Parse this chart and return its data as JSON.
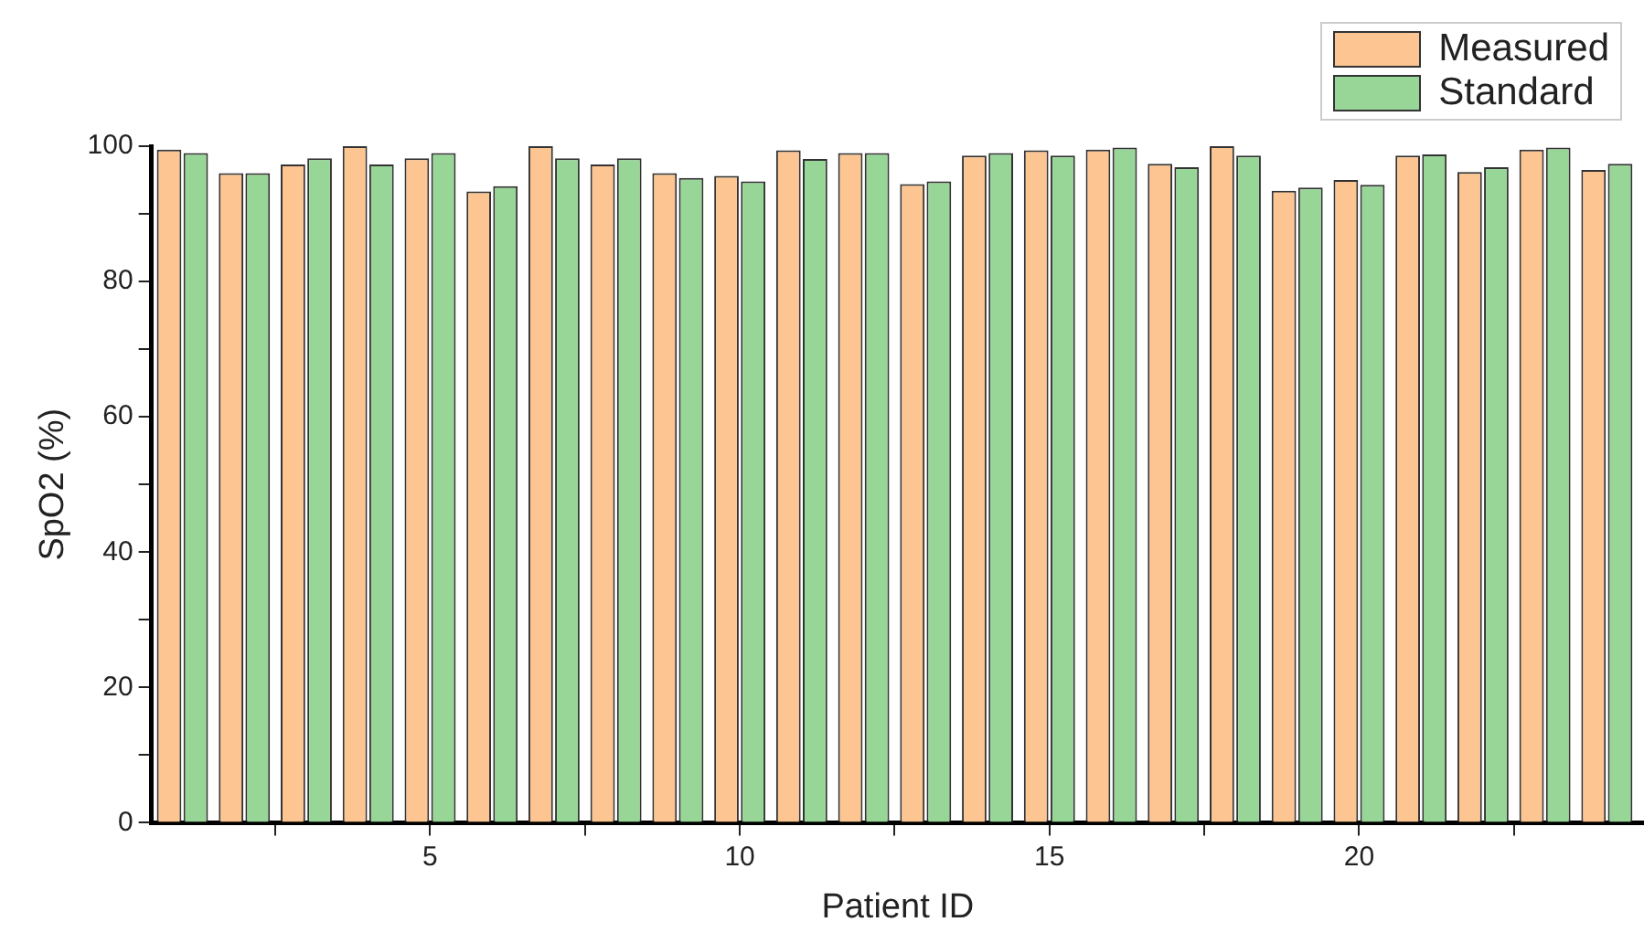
{
  "chart_data": {
    "type": "bar",
    "xlabel": "Patient ID",
    "ylabel": "SpO2 (%)",
    "x": [
      1,
      2,
      3,
      4,
      5,
      6,
      7,
      8,
      9,
      10,
      11,
      12,
      13,
      14,
      15,
      16,
      17,
      18,
      19,
      20,
      21,
      22,
      23,
      24
    ],
    "series": [
      {
        "name": "Measured",
        "color": "#fdc591",
        "values": [
          99.5,
          96.0,
          97.3,
          100,
          98.2,
          93.3,
          100,
          97.3,
          96.0,
          95.6,
          99.4,
          99.0,
          94.4,
          98.6,
          99.4,
          99.5,
          97.4,
          100,
          93.4,
          95.0,
          98.6,
          96.2,
          99.5,
          96.5
        ]
      },
      {
        "name": "Standard",
        "color": "#98d698",
        "values": [
          99.0,
          96.0,
          98.2,
          97.3,
          99.0,
          94.1,
          98.2,
          98.2,
          95.3,
          94.8,
          98.1,
          99.0,
          94.8,
          99.0,
          98.6,
          99.8,
          96.9,
          98.6,
          93.9,
          94.3,
          98.8,
          96.9,
          99.8,
          97.4
        ]
      }
    ],
    "xlim": [
      0.5,
      24.6
    ],
    "xticks": [
      {
        "value": 2.5,
        "label": null
      },
      5,
      {
        "value": 7.5,
        "label": null
      },
      10,
      {
        "value": 12.5,
        "label": null
      },
      15,
      {
        "value": 17.5,
        "label": null
      },
      20,
      {
        "value": 22.5,
        "label": null
      }
    ],
    "ylim": [
      0,
      100
    ],
    "yticks": [
      0,
      {
        "value": 10,
        "label": null
      },
      20,
      {
        "value": 30,
        "label": null
      },
      40,
      {
        "value": 50,
        "label": null
      },
      60,
      {
        "value": 70,
        "label": null
      },
      80,
      {
        "value": 90,
        "label": null
      },
      100
    ],
    "grid": false,
    "legend": "top right"
  }
}
